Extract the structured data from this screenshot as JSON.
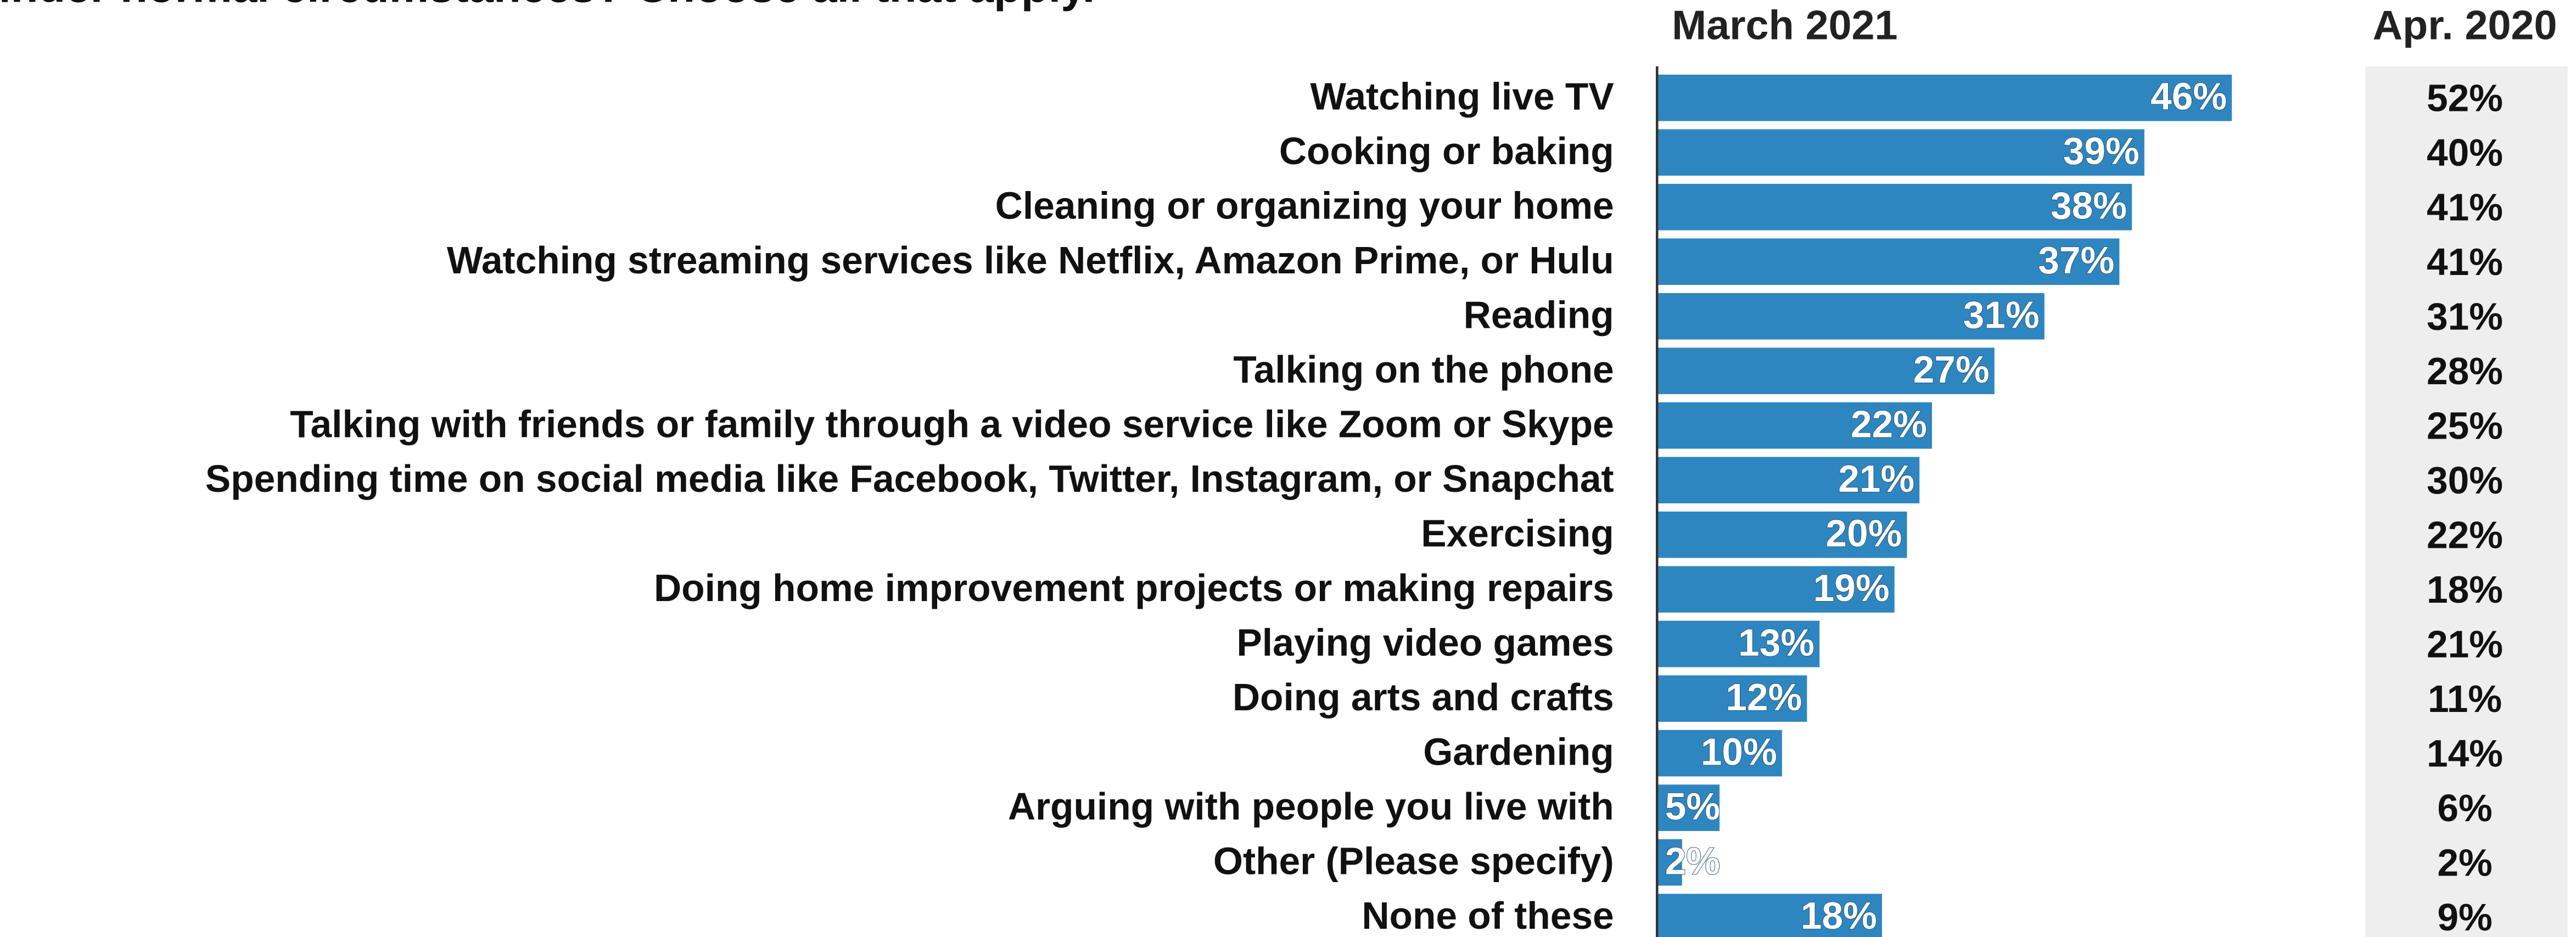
{
  "chart_data": {
    "type": "bar",
    "orientation": "horizontal",
    "title": "under normal circumstances? Choose all that apply.",
    "categories": [
      "Watching live TV",
      "Cooking or baking",
      "Cleaning or organizing your home",
      "Watching streaming services like Netflix, Amazon Prime, or Hulu",
      "Reading",
      "Talking on the phone",
      "Talking with friends or family through a video service like Zoom or Skype",
      "Spending time on social media like Facebook, Twitter, Instagram, or Snapchat",
      "Exercising",
      "Doing home improvement projects or making repairs",
      "Playing video games",
      "Doing arts and crafts",
      "Gardening",
      "Arguing with people you live with",
      "Other (Please specify)",
      "None of these"
    ],
    "series": [
      {
        "name": "March 2021",
        "color": "#2e86c1",
        "values": [
          46,
          39,
          38,
          37,
          31,
          27,
          22,
          21,
          20,
          19,
          13,
          12,
          10,
          5,
          2,
          18
        ],
        "value_labels": [
          "46%",
          "39%",
          "38%",
          "37%",
          "31%",
          "27%",
          "22%",
          "21%",
          "20%",
          "19%",
          "13%",
          "12%",
          "10%",
          "5%",
          "2%",
          "18%"
        ]
      },
      {
        "name": "Apr. 2020",
        "color": "#eeeeee",
        "values": [
          52,
          40,
          41,
          41,
          31,
          28,
          25,
          30,
          22,
          18,
          21,
          11,
          14,
          6,
          2,
          9
        ],
        "value_labels": [
          "52%",
          "40%",
          "41%",
          "41%",
          "31%",
          "28%",
          "25%",
          "30%",
          "22%",
          "18%",
          "21%",
          "11%",
          "14%",
          "6%",
          "2%",
          "9%"
        ]
      }
    ],
    "xlim": [
      0,
      60
    ]
  }
}
